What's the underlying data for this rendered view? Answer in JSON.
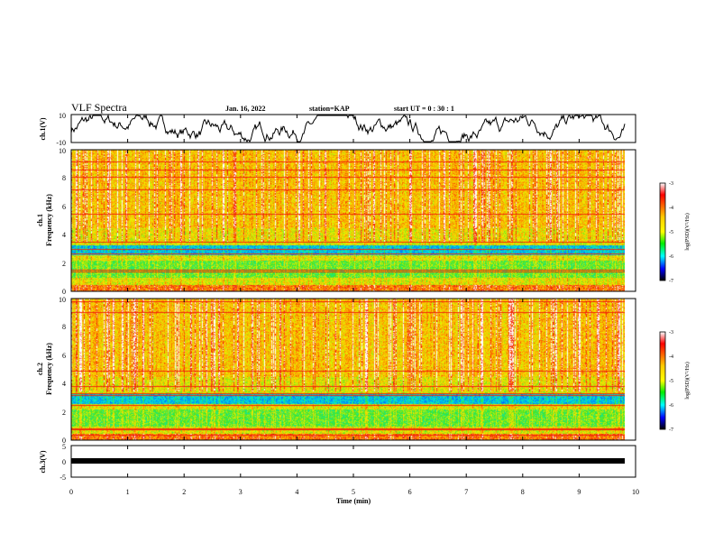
{
  "header": {
    "title": "VLF Spectra",
    "date": "Jan. 16, 2022",
    "station": "station=KAP",
    "start": "start UT = 0 : 30 : 1"
  },
  "chart_data": [
    {
      "type": "line",
      "name": "ch1-waveform",
      "ylabel": "ch.1(V)",
      "ylim": [
        -10,
        10
      ],
      "yticks": [
        "10",
        "-10"
      ],
      "xlim": [
        0,
        10
      ]
    },
    {
      "type": "heatmap",
      "name": "ch1-spectrogram",
      "ylabel": "ch.1",
      "ylabel2": "Frequency (kHz)",
      "ylim": [
        0,
        10
      ],
      "yticks": [
        "0",
        "2",
        "4",
        "6",
        "8",
        "10"
      ],
      "colorbar": {
        "label": "log(PSD)(V²/Hz)",
        "range": [
          -7,
          -3
        ],
        "ticks": [
          "-3",
          "-4",
          "-5",
          "-6",
          "-7"
        ]
      }
    },
    {
      "type": "heatmap",
      "name": "ch2-spectrogram",
      "ylabel": "ch.2",
      "ylabel2": "Frequency (kHz)",
      "ylim": [
        0,
        10
      ],
      "yticks": [
        "0",
        "2",
        "4",
        "6",
        "8",
        "10"
      ],
      "colorbar": {
        "label": "log(PSD)(V²/Hz)",
        "range": [
          -7,
          -3
        ],
        "ticks": [
          "-3",
          "-4",
          "-5",
          "-6",
          "-7"
        ]
      }
    },
    {
      "type": "line",
      "name": "ch3-waveform",
      "ylabel": "ch.3(V)",
      "ylim": [
        -5,
        5
      ],
      "yticks": [
        "5",
        "0",
        "-5"
      ],
      "xlim": [
        0,
        10
      ],
      "xticks": [
        "0",
        "1",
        "2",
        "3",
        "4",
        "5",
        "6",
        "7",
        "8",
        "9",
        "10"
      ],
      "xlabel": "Time (min)"
    }
  ]
}
